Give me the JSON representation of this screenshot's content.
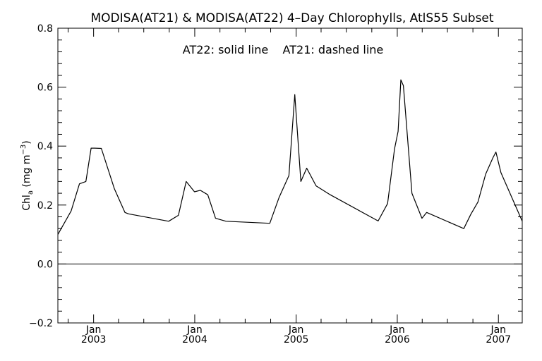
{
  "chart_data": {
    "type": "line",
    "title": "MODISA(AT21) & MODISA(AT22) 4–Day Chlorophylls, AtlS55 Subset",
    "annotation": "AT22: solid line    AT21: dashed line",
    "ylabel": "Chl",
    "ylabel_sub": "a",
    "ylabel_unit_open": " (mg m",
    "ylabel_unit_sup": "−3",
    "ylabel_unit_close": ")",
    "ylim": [
      -0.2,
      0.8
    ],
    "yticks": [
      -0.2,
      0.0,
      0.2,
      0.4,
      0.6,
      0.8
    ],
    "ytick_labels": [
      "−0.2",
      "0.0",
      "0.2",
      "0.4",
      "0.6",
      "0.8"
    ],
    "xlim": [
      "2002-08-25",
      "2007-03-28"
    ],
    "xticks": [
      {
        "date": "2003-01-01",
        "month": "Jan",
        "year": "2003"
      },
      {
        "date": "2004-01-01",
        "month": "Jan",
        "year": "2004"
      },
      {
        "date": "2005-01-01",
        "month": "Jan",
        "year": "2005"
      },
      {
        "date": "2006-01-01",
        "month": "Jan",
        "year": "2006"
      },
      {
        "date": "2007-01-01",
        "month": "Jan",
        "year": "2007"
      }
    ],
    "zero_line": true,
    "series": [
      {
        "name": "AT22",
        "style": "solid",
        "color": "#000000",
        "x": [
          "2002-08-25",
          "2002-10-12",
          "2002-11-11",
          "2002-12-04",
          "2002-12-23",
          "2003-01-05",
          "2003-01-29",
          "2003-03-17",
          "2003-04-24",
          "2003-05-07",
          "2003-09-29",
          "2003-11-03",
          "2003-12-01",
          "2003-12-31",
          "2004-01-21",
          "2004-02-17",
          "2004-03-16",
          "2004-04-23",
          "2004-09-28",
          "2004-10-31",
          "2004-12-06",
          "2004-12-27",
          "2005-01-18",
          "2005-02-08",
          "2005-03-14",
          "2005-05-04",
          "2005-10-24",
          "2005-11-27",
          "2005-12-22",
          "2006-01-04",
          "2006-01-14",
          "2006-01-23",
          "2006-02-23",
          "2006-03-31",
          "2006-04-17",
          "2006-08-29",
          "2006-09-23",
          "2006-10-19",
          "2006-11-16",
          "2006-12-12",
          "2006-12-23",
          "2007-01-10",
          "2007-03-28"
        ],
        "y": [
          0.1,
          0.18,
          0.272,
          0.28,
          0.393,
          0.393,
          0.392,
          0.255,
          0.175,
          0.17,
          0.145,
          0.165,
          0.28,
          0.245,
          0.25,
          0.235,
          0.155,
          0.145,
          0.138,
          0.225,
          0.3,
          0.575,
          0.28,
          0.325,
          0.265,
          0.235,
          0.146,
          0.205,
          0.39,
          0.45,
          0.625,
          0.605,
          0.24,
          0.155,
          0.175,
          0.12,
          0.168,
          0.21,
          0.305,
          0.36,
          0.38,
          0.31,
          0.145
        ]
      }
    ]
  }
}
